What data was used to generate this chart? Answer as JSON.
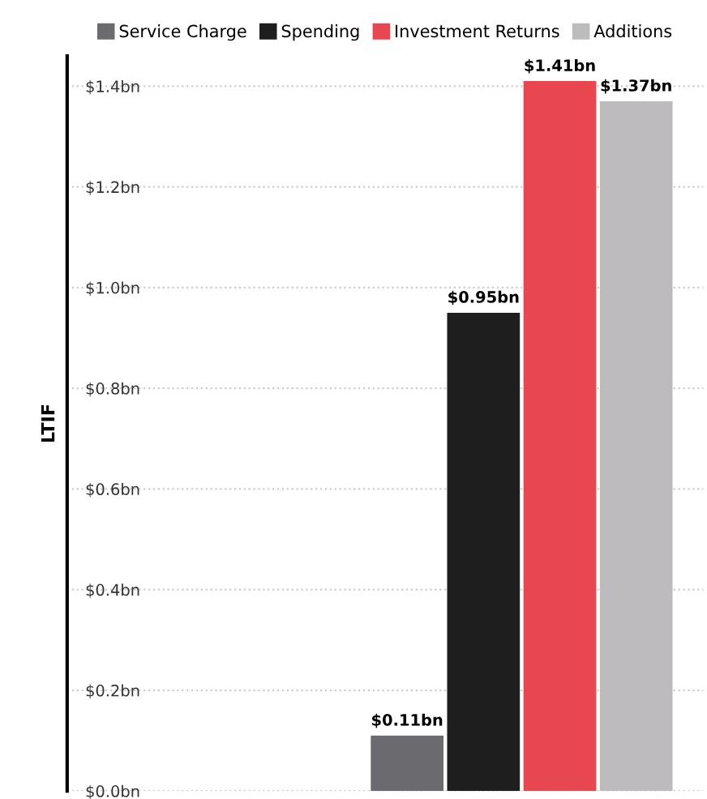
{
  "chart_data": {
    "type": "bar",
    "ylabel": "LTIF",
    "categories": [
      null
    ],
    "series": [
      {
        "name": "Service Charge",
        "color": "#6b6b6f",
        "values": [
          0.11
        ],
        "value_labels": [
          "$0.11bn"
        ]
      },
      {
        "name": "Spending",
        "color": "#1e1e1e",
        "values": [
          0.95
        ],
        "value_labels": [
          "$0.95bn"
        ]
      },
      {
        "name": "Investment Returns",
        "color": "#e8474f",
        "values": [
          1.41
        ],
        "value_labels": [
          "$1.41bn"
        ]
      },
      {
        "name": "Additions",
        "color": "#bdbbbe",
        "values": [
          1.37
        ],
        "value_labels": [
          "$1.37bn"
        ]
      }
    ],
    "ylim": [
      0,
      1.46
    ],
    "yticks": [
      {
        "value": 0,
        "label": "$0.0bn"
      },
      {
        "value": 0.2,
        "label": "$0.2bn"
      },
      {
        "value": 0.4,
        "label": "$0.4bn"
      },
      {
        "value": 0.6,
        "label": "$0.6bn"
      },
      {
        "value": 0.8,
        "label": "$0.8bn"
      },
      {
        "value": 1.0,
        "label": "$1.0bn"
      },
      {
        "value": 1.2,
        "label": "$1.2bn"
      },
      {
        "value": 1.4,
        "label": "$1.4bn"
      }
    ],
    "grid": "y",
    "legend": "top"
  }
}
